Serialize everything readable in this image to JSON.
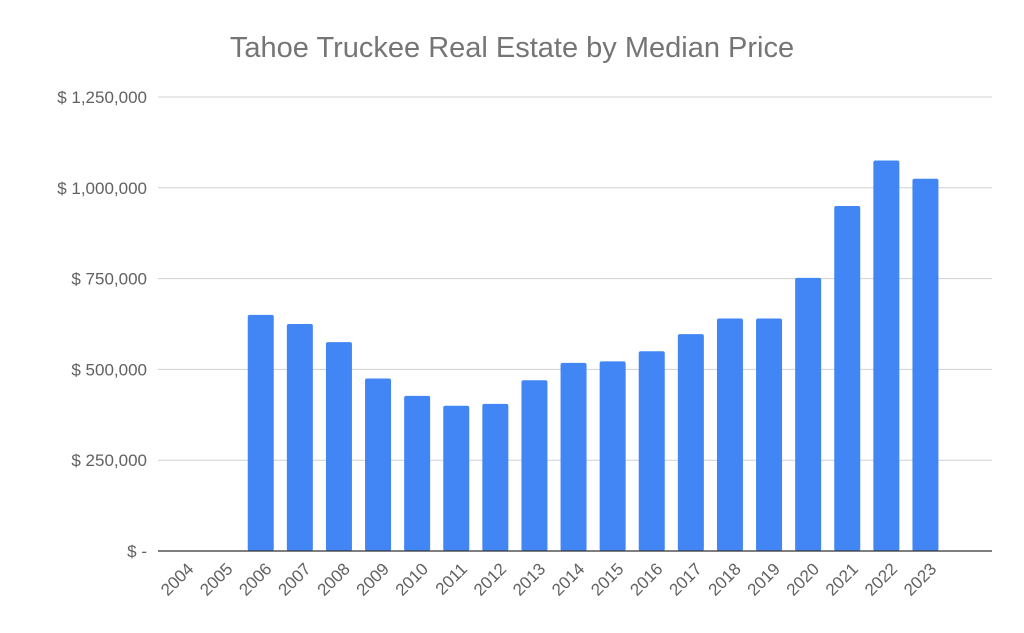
{
  "chart_data": {
    "type": "bar",
    "title": "Tahoe Truckee Real Estate by Median Price",
    "xlabel": "",
    "ylabel": "",
    "categories": [
      "2004",
      "2005",
      "2006",
      "2007",
      "2008",
      "2009",
      "2010",
      "2011",
      "2012",
      "2013",
      "2014",
      "2015",
      "2016",
      "2017",
      "2018",
      "2019",
      "2020",
      "2021",
      "2022",
      "2023"
    ],
    "values": [
      null,
      null,
      650000,
      625000,
      575000,
      475000,
      427000,
      400000,
      405000,
      470000,
      518000,
      522000,
      550000,
      597000,
      640000,
      640000,
      752000,
      950000,
      1075000,
      1025000
    ],
    "ylim": [
      0,
      1250000
    ],
    "y_ticks": [
      0,
      250000,
      500000,
      750000,
      1000000,
      1250000
    ],
    "y_tick_labels": [
      "$ -",
      "$ 250,000",
      "$ 500,000",
      "$ 750,000",
      "$ 1,000,000",
      "$ 1,250,000"
    ],
    "bar_color": "#4285f4",
    "grid": true,
    "legend": "none"
  }
}
